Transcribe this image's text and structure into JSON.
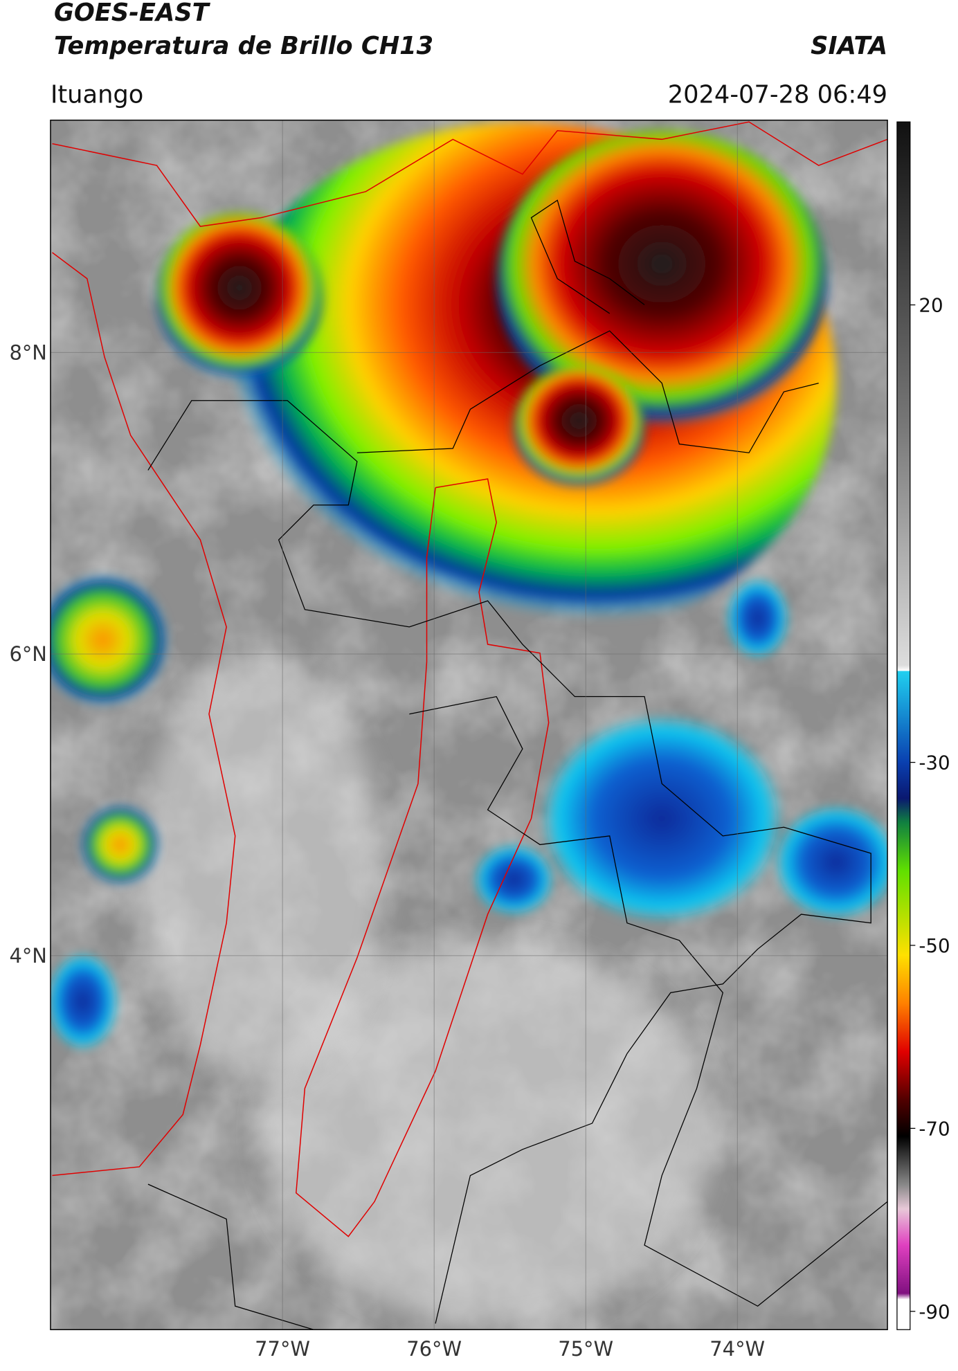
{
  "header": {
    "title": "GOES-EAST",
    "subtitle": "Temperatura de Brillo CH13",
    "brand": "SIATA",
    "location": "Ituango",
    "datetime": "2024-07-28 06:49"
  },
  "chart_data": {
    "type": "map",
    "xlim": [
      -78.53,
      -73.01
    ],
    "ylim": [
      1.52,
      9.54
    ],
    "xticks": [
      {
        "value": -77,
        "label": "77°W"
      },
      {
        "value": -76,
        "label": "76°W"
      },
      {
        "value": -75,
        "label": "75°W"
      },
      {
        "value": -74,
        "label": "74°W"
      }
    ],
    "yticks": [
      {
        "value": 8,
        "label": "8°N"
      },
      {
        "value": 6,
        "label": "6°N"
      },
      {
        "value": 4,
        "label": "4°N"
      }
    ],
    "grid": true,
    "colorbar": {
      "lim": [
        -92,
        40
      ],
      "ticks": [
        20,
        -30,
        -50,
        -70,
        -90
      ]
    }
  }
}
